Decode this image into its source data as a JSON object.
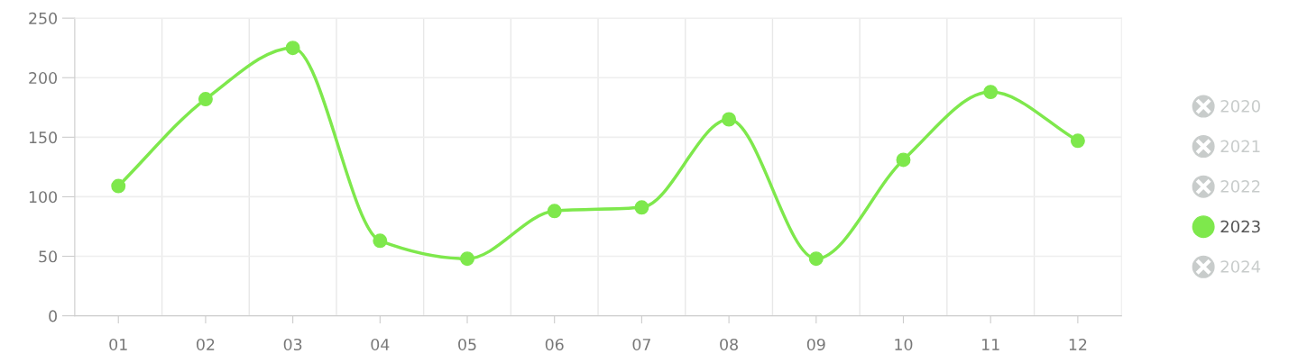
{
  "chart_data": {
    "type": "line",
    "categories": [
      "01",
      "02",
      "03",
      "04",
      "05",
      "06",
      "07",
      "08",
      "09",
      "10",
      "11",
      "12"
    ],
    "series": [
      {
        "name": "2020",
        "color": "#c8cccb",
        "values": [
          null,
          null,
          null,
          null,
          null,
          null,
          null,
          null,
          null,
          null,
          null,
          null
        ]
      },
      {
        "name": "2021",
        "color": "#c8cccb",
        "values": [
          null,
          null,
          null,
          null,
          null,
          null,
          null,
          null,
          null,
          null,
          null,
          null
        ]
      },
      {
        "name": "2022",
        "color": "#c8cccb",
        "values": [
          null,
          null,
          null,
          null,
          null,
          null,
          null,
          null,
          null,
          null,
          null,
          null
        ]
      },
      {
        "name": "2023",
        "color": "#7ee84c",
        "values": [
          109,
          182,
          225,
          63,
          48,
          88,
          91,
          165,
          48,
          131,
          188,
          147
        ]
      },
      {
        "name": "2024",
        "color": "#c8cccb",
        "values": [
          null,
          null,
          null,
          null,
          null,
          null,
          null,
          null,
          null,
          null,
          null,
          null
        ]
      }
    ],
    "ylim": [
      0,
      250
    ],
    "yticks": [
      0,
      50,
      100,
      150,
      200,
      250
    ],
    "grid": true,
    "legend": "right",
    "marker": "circle",
    "line_style": "solid"
  }
}
